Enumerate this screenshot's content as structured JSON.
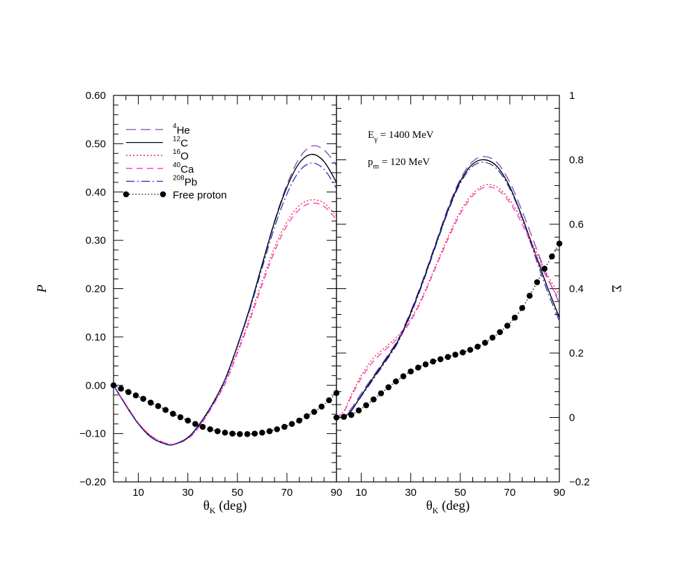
{
  "chart_data": [
    {
      "panel": "left",
      "type": "line",
      "xlabel": "θ",
      "xlabel_sub": "K",
      "xlabel_unit": " (deg)",
      "ylabel": "P",
      "xlim": [
        0,
        90
      ],
      "ylim": [
        -0.2,
        0.6
      ],
      "xticks": [
        10,
        30,
        50,
        70,
        90
      ],
      "yticks": [
        -0.2,
        -0.1,
        0.0,
        0.1,
        0.2,
        0.3,
        0.4,
        0.5,
        0.6
      ],
      "ytick_labels": [
        "−0.20",
        "−0.10",
        "0.00",
        "0.10",
        "0.20",
        "0.30",
        "0.40",
        "0.50",
        "0.60"
      ],
      "legend": {
        "placement": "top-left",
        "entries": [
          {
            "sup": "4",
            "text": "He",
            "series": 0
          },
          {
            "sup": "12",
            "text": "C",
            "series": 1
          },
          {
            "sup": "16",
            "text": "O",
            "series": 2
          },
          {
            "sup": "40",
            "text": "Ca",
            "series": 3
          },
          {
            "sup": "208",
            "text": "Pb",
            "series": 4
          },
          {
            "sup": "",
            "text": "Free proton",
            "series": 5
          }
        ]
      },
      "series": [
        {
          "style": "long-dash",
          "color": "#8040c0",
          "x": [
            0,
            5,
            10,
            15,
            20,
            24,
            30,
            35,
            40,
            45,
            50,
            55,
            60,
            65,
            70,
            75,
            80,
            85,
            90
          ],
          "y": [
            0.0,
            -0.04,
            -0.078,
            -0.105,
            -0.118,
            -0.122,
            -0.108,
            -0.08,
            -0.04,
            0.01,
            0.08,
            0.16,
            0.25,
            0.34,
            0.415,
            0.47,
            0.495,
            0.487,
            0.455
          ]
        },
        {
          "style": "solid",
          "color": "#000000",
          "x": [
            0,
            5,
            10,
            15,
            20,
            24,
            30,
            35,
            40,
            45,
            50,
            55,
            60,
            65,
            70,
            75,
            80,
            85,
            90
          ],
          "y": [
            0.0,
            -0.042,
            -0.08,
            -0.107,
            -0.12,
            -0.123,
            -0.108,
            -0.078,
            -0.038,
            0.012,
            0.082,
            0.16,
            0.25,
            0.338,
            0.41,
            0.46,
            0.478,
            0.463,
            0.42
          ]
        },
        {
          "style": "dotted",
          "color": "#e02020",
          "x": [
            0,
            5,
            10,
            15,
            20,
            24,
            30,
            35,
            40,
            45,
            50,
            55,
            60,
            65,
            70,
            75,
            80,
            85,
            90
          ],
          "y": [
            0.0,
            -0.04,
            -0.078,
            -0.104,
            -0.118,
            -0.122,
            -0.11,
            -0.082,
            -0.042,
            0.005,
            0.07,
            0.14,
            0.215,
            0.285,
            0.338,
            0.372,
            0.384,
            0.377,
            0.35
          ]
        },
        {
          "style": "dash",
          "color": "#ff30c0",
          "x": [
            0,
            5,
            10,
            15,
            20,
            24,
            30,
            35,
            40,
            45,
            50,
            55,
            60,
            65,
            70,
            75,
            80,
            85,
            90
          ],
          "y": [
            0.0,
            -0.04,
            -0.078,
            -0.104,
            -0.118,
            -0.122,
            -0.111,
            -0.083,
            -0.043,
            0.003,
            0.066,
            0.134,
            0.208,
            0.277,
            0.33,
            0.364,
            0.377,
            0.37,
            0.343
          ]
        },
        {
          "style": "dash-dot",
          "color": "#2030c0",
          "x": [
            0,
            5,
            10,
            15,
            20,
            24,
            30,
            35,
            40,
            45,
            50,
            55,
            60,
            65,
            70,
            75,
            80,
            85,
            90
          ],
          "y": [
            0.0,
            -0.042,
            -0.08,
            -0.107,
            -0.12,
            -0.123,
            -0.109,
            -0.079,
            -0.039,
            0.011,
            0.08,
            0.156,
            0.243,
            0.327,
            0.396,
            0.443,
            0.46,
            0.447,
            0.408
          ]
        },
        {
          "style": "markers-dotted",
          "color": "#000000",
          "x": [
            0,
            3,
            6,
            9,
            12,
            15,
            18,
            21,
            24,
            27,
            30,
            33,
            36,
            39,
            42,
            45,
            48,
            51,
            54,
            57,
            60,
            63,
            66,
            69,
            72,
            75,
            78,
            81,
            84,
            87,
            90
          ],
          "y": [
            0.0,
            -0.007,
            -0.014,
            -0.021,
            -0.028,
            -0.036,
            -0.043,
            -0.051,
            -0.059,
            -0.066,
            -0.073,
            -0.08,
            -0.086,
            -0.091,
            -0.095,
            -0.098,
            -0.1,
            -0.101,
            -0.101,
            -0.1,
            -0.098,
            -0.095,
            -0.091,
            -0.086,
            -0.08,
            -0.073,
            -0.064,
            -0.055,
            -0.044,
            -0.031,
            -0.016
          ]
        }
      ]
    },
    {
      "panel": "right",
      "type": "line",
      "xlabel": "θ",
      "xlabel_sub": "K",
      "xlabel_unit": " (deg)",
      "ylabel": "Σ",
      "xlim": [
        0,
        90
      ],
      "ylim": [
        -0.2,
        1.0
      ],
      "xticks": [
        10,
        30,
        50,
        70,
        90
      ],
      "yticks": [
        -0.2,
        0,
        0.2,
        0.4,
        0.6,
        0.8,
        1
      ],
      "ytick_labels": [
        "−0.2",
        "0",
        "0.2",
        "0.4",
        "0.6",
        "0.8",
        "1"
      ],
      "annotations": [
        {
          "main": "E",
          "sub": "γ",
          "rest": " = 1400 MeV"
        },
        {
          "main": "p",
          "sub": "m",
          "rest": " = 120 MeV"
        }
      ],
      "series": [
        {
          "style": "long-dash",
          "color": "#8040c0",
          "x": [
            0,
            3,
            6,
            10,
            15,
            20,
            25,
            30,
            35,
            40,
            45,
            50,
            55,
            60,
            65,
            70,
            75,
            80,
            85,
            90
          ],
          "y": [
            0.0,
            0.003,
            0.028,
            0.075,
            0.13,
            0.185,
            0.245,
            0.33,
            0.43,
            0.54,
            0.65,
            0.74,
            0.795,
            0.81,
            0.79,
            0.73,
            0.64,
            0.54,
            0.44,
            0.355
          ]
        },
        {
          "style": "solid",
          "color": "#000000",
          "x": [
            0,
            3,
            6,
            10,
            15,
            20,
            25,
            30,
            35,
            40,
            45,
            50,
            55,
            60,
            65,
            70,
            75,
            80,
            85,
            90
          ],
          "y": [
            0.0,
            0.002,
            0.022,
            0.068,
            0.125,
            0.18,
            0.24,
            0.325,
            0.425,
            0.535,
            0.643,
            0.733,
            0.787,
            0.8,
            0.778,
            0.716,
            0.622,
            0.515,
            0.408,
            0.31
          ]
        },
        {
          "style": "dotted",
          "color": "#e02020",
          "x": [
            0,
            3,
            6,
            10,
            15,
            20,
            25,
            30,
            35,
            40,
            45,
            50,
            55,
            60,
            65,
            70,
            75,
            80,
            85,
            90
          ],
          "y": [
            0.0,
            0.02,
            0.07,
            0.13,
            0.185,
            0.22,
            0.255,
            0.305,
            0.38,
            0.47,
            0.56,
            0.64,
            0.695,
            0.722,
            0.715,
            0.675,
            0.61,
            0.525,
            0.445,
            0.38
          ]
        },
        {
          "style": "dash",
          "color": "#ff30c0",
          "x": [
            0,
            3,
            6,
            10,
            15,
            20,
            25,
            30,
            35,
            40,
            45,
            50,
            55,
            60,
            65,
            70,
            75,
            80,
            85,
            90
          ],
          "y": [
            0.0,
            0.018,
            0.065,
            0.122,
            0.175,
            0.212,
            0.248,
            0.3,
            0.375,
            0.465,
            0.553,
            0.632,
            0.688,
            0.715,
            0.707,
            0.667,
            0.6,
            0.515,
            0.433,
            0.366
          ]
        },
        {
          "style": "dash-dot",
          "color": "#2030c0",
          "x": [
            0,
            3,
            6,
            10,
            15,
            20,
            25,
            30,
            35,
            40,
            45,
            50,
            55,
            60,
            65,
            70,
            75,
            80,
            85,
            90
          ],
          "y": [
            0.0,
            0.002,
            0.02,
            0.065,
            0.12,
            0.175,
            0.235,
            0.32,
            0.42,
            0.53,
            0.638,
            0.727,
            0.78,
            0.792,
            0.77,
            0.71,
            0.618,
            0.505,
            0.395,
            0.3
          ]
        },
        {
          "style": "markers-dotted",
          "color": "#000000",
          "x": [
            0,
            3,
            6,
            9,
            12,
            15,
            18,
            21,
            24,
            27,
            30,
            33,
            36,
            39,
            42,
            45,
            48,
            51,
            54,
            57,
            60,
            63,
            66,
            69,
            72,
            75,
            78,
            81,
            84,
            87,
            90
          ],
          "y": [
            0.0,
            0.002,
            0.008,
            0.022,
            0.038,
            0.056,
            0.075,
            0.094,
            0.112,
            0.128,
            0.143,
            0.155,
            0.165,
            0.174,
            0.181,
            0.188,
            0.195,
            0.202,
            0.21,
            0.22,
            0.232,
            0.248,
            0.265,
            0.285,
            0.31,
            0.34,
            0.378,
            0.42,
            0.462,
            0.5,
            0.54
          ]
        }
      ]
    }
  ]
}
